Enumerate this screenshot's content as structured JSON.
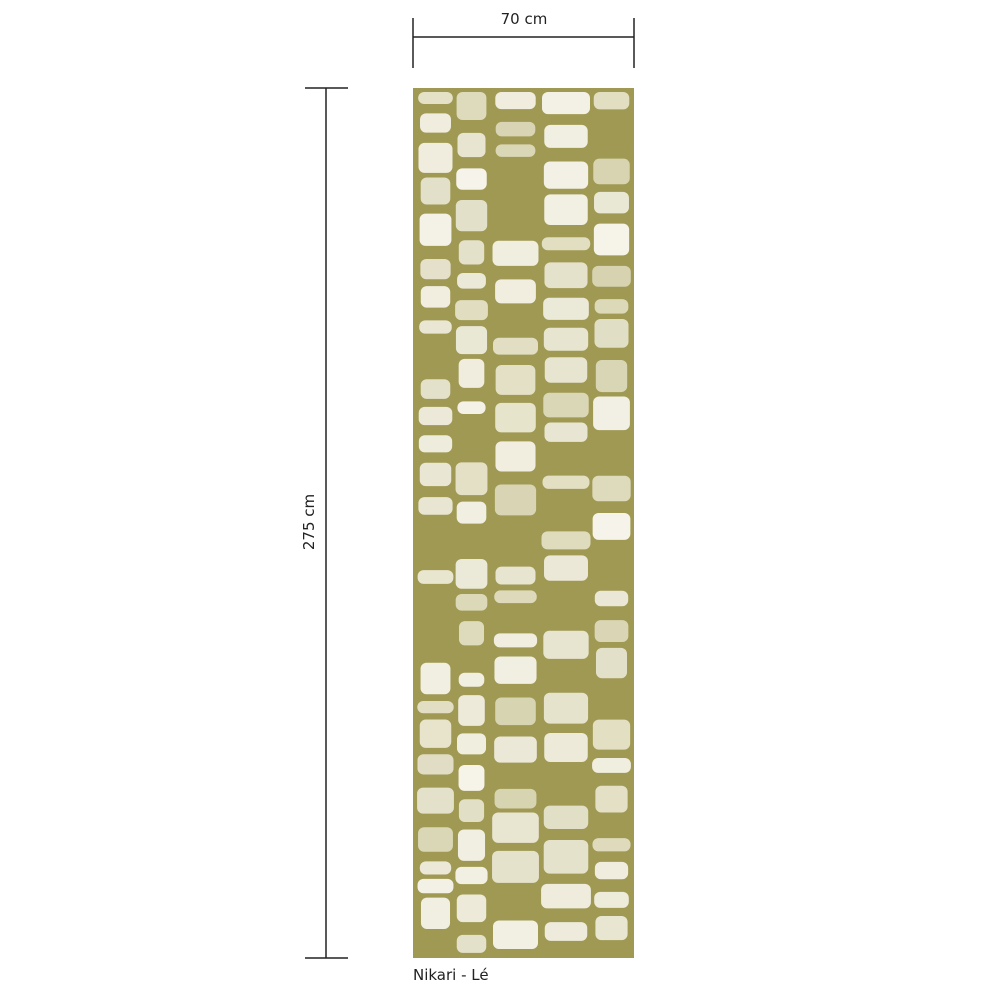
{
  "dimensions": {
    "width_label": "70 cm",
    "height_label": "275 cm"
  },
  "caption": "Nikari - Lé"
}
